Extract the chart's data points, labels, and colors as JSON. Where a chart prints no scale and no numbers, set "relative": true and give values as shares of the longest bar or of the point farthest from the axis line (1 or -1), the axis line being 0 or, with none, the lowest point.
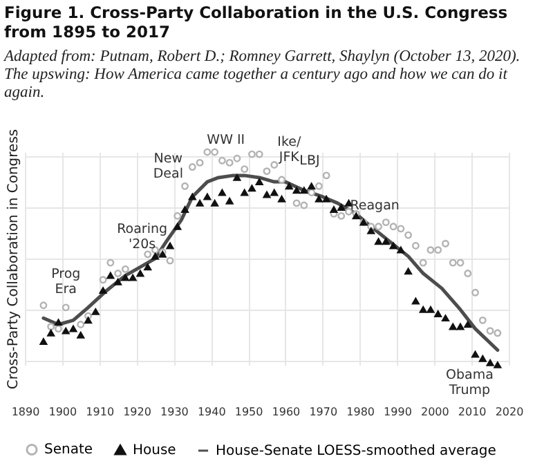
{
  "chart_data": {
    "type": "scatter",
    "title": "Figure 1. Cross-Party Collaboration in the U.S. Congress from 1895 to 2017",
    "subtitle": "Adapted from: Putnam, Robert D.; Romney Garrett, Shaylyn (October 13, 2020). The upswing: How America came together a century ago and how we can do it again.",
    "ylabel": "Cross-Party Collaboration in Congress",
    "relative": true,
    "xlim": [
      1890,
      2020
    ],
    "xticks": [
      1890,
      1900,
      1910,
      1920,
      1930,
      1940,
      1950,
      1960,
      1970,
      1980,
      1990,
      2000,
      2010,
      2020
    ],
    "grid": true,
    "legend": "bottom",
    "series": [
      {
        "name": "Senate",
        "type": "scatter",
        "marker": "circle",
        "color": "#b3b3b3",
        "x": [
          1895,
          1897,
          1899,
          1901,
          1905,
          1907,
          1911,
          1913,
          1915,
          1917,
          1923,
          1925,
          1927,
          1929,
          1931,
          1933,
          1935,
          1937,
          1939,
          1941,
          1943,
          1945,
          1947,
          1949,
          1951,
          1953,
          1955,
          1957,
          1959,
          1963,
          1965,
          1967,
          1969,
          1971,
          1973,
          1975,
          1977,
          1979,
          1981,
          1983,
          1985,
          1987,
          1989,
          1991,
          1993,
          1995,
          1997,
          1999,
          2001,
          2003,
          2005,
          2007,
          2009,
          2011,
          2013,
          2015,
          2017
        ],
        "values": [
          0.28,
          0.18,
          0.17,
          0.27,
          0.19,
          0.23,
          0.4,
          0.48,
          0.43,
          0.45,
          0.52,
          0.54,
          0.53,
          0.49,
          0.7,
          0.84,
          0.93,
          0.95,
          1,
          1,
          0.96,
          0.95,
          0.97,
          0.92,
          0.99,
          0.99,
          0.91,
          0.94,
          0.87,
          0.76,
          0.75,
          0.81,
          0.84,
          0.89,
          0.71,
          0.7,
          0.72,
          0.71,
          0.67,
          0.65,
          0.65,
          0.67,
          0.65,
          0.64,
          0.61,
          0.56,
          0.48,
          0.54,
          0.54,
          0.57,
          0.48,
          0.48,
          0.43,
          0.34,
          0.21,
          0.16,
          0.15
        ]
      },
      {
        "name": "House",
        "type": "scatter",
        "marker": "triangle",
        "color": "#111111",
        "x": [
          1895,
          1897,
          1899,
          1901,
          1903,
          1905,
          1907,
          1909,
          1911,
          1913,
          1915,
          1917,
          1919,
          1921,
          1923,
          1925,
          1927,
          1929,
          1931,
          1933,
          1935,
          1937,
          1939,
          1941,
          1943,
          1945,
          1947,
          1949,
          1951,
          1953,
          1955,
          1957,
          1959,
          1961,
          1963,
          1965,
          1967,
          1969,
          1971,
          1973,
          1975,
          1977,
          1979,
          1981,
          1983,
          1985,
          1987,
          1989,
          1991,
          1993,
          1995,
          1997,
          1999,
          2001,
          2003,
          2005,
          2007,
          2009,
          2011,
          2013,
          2015,
          2017
        ],
        "values": [
          0.11,
          0.15,
          0.2,
          0.16,
          0.17,
          0.14,
          0.21,
          0.25,
          0.35,
          0.42,
          0.39,
          0.41,
          0.41,
          0.43,
          0.46,
          0.51,
          0.52,
          0.56,
          0.65,
          0.73,
          0.79,
          0.76,
          0.79,
          0.76,
          0.81,
          0.77,
          0.88,
          0.81,
          0.83,
          0.86,
          0.8,
          0.81,
          0.78,
          0.84,
          0.82,
          0.82,
          0.84,
          0.78,
          0.78,
          0.73,
          0.74,
          0.76,
          0.7,
          0.67,
          0.63,
          0.58,
          0.58,
          0.56,
          0.54,
          0.44,
          0.3,
          0.26,
          0.26,
          0.24,
          0.22,
          0.18,
          0.18,
          0.19,
          0.05,
          0.03,
          0.01,
          0
        ]
      },
      {
        "name": "House-Senate LOESS-smoothed average",
        "type": "line",
        "color": "#4d4d4d",
        "x": [
          1895,
          1899,
          1903,
          1907,
          1912,
          1917,
          1921,
          1925,
          1928,
          1932,
          1935,
          1939,
          1942,
          1946,
          1949,
          1953,
          1957,
          1960,
          1965,
          1970,
          1974,
          1979,
          1983,
          1988,
          1993,
          1997,
          2002,
          2007,
          2011,
          2017
        ],
        "values": [
          0.22,
          0.19,
          0.21,
          0.27,
          0.35,
          0.42,
          0.46,
          0.5,
          0.58,
          0.68,
          0.79,
          0.86,
          0.88,
          0.89,
          0.89,
          0.88,
          0.86,
          0.86,
          0.82,
          0.79,
          0.76,
          0.71,
          0.65,
          0.58,
          0.51,
          0.43,
          0.36,
          0.26,
          0.17,
          0.07
        ]
      }
    ],
    "annotations": [
      "Prog\nEra",
      "Roaring\n'20s",
      "New\nDeal",
      "WW II",
      "Ike/\nJFK",
      "LBJ",
      "Reagan",
      "Obama\nTrump"
    ]
  }
}
